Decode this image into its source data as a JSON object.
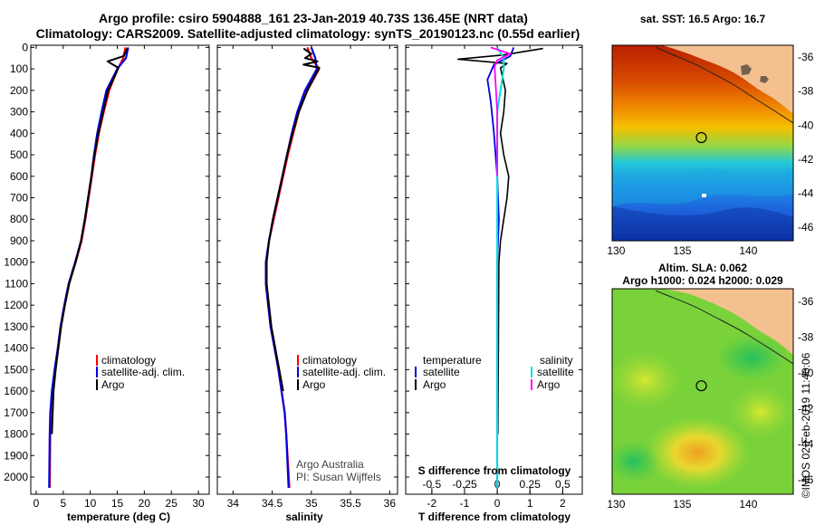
{
  "header": {
    "title_line1": "Argo profile: csiro 5904888_161 23-Jan-2019 40.73S 136.45E (NRT data)",
    "title_line2": "Climatology: CARS2009. Satellite-adjusted climatology: synTS_20190123.nc (0.55d earlier)"
  },
  "credit": {
    "line1": "Argo Australia",
    "line2": "PI: Susan Wijffels",
    "side": "©IMOS 02-Feb-2019 11:40:06"
  },
  "colors": {
    "climatology": "#ff0000",
    "satellite": "#0000dd",
    "argo": "#000000",
    "temp_satellite_diff": "#00dddd",
    "salinity_satellite_diff": "#00dddd",
    "salinity_argo_diff": "#ff00ff",
    "land": "#f4c090"
  },
  "chart_data": [
    {
      "type": "line",
      "name": "temperature-profile",
      "xlabel": "temperature (deg C)",
      "ylabel": "",
      "xlim": [
        -1,
        32
      ],
      "ylim": [
        2080,
        -10
      ],
      "xticks": [
        0,
        5,
        10,
        15,
        20,
        25,
        30
      ],
      "yticks": [
        0,
        100,
        200,
        300,
        400,
        500,
        600,
        700,
        800,
        900,
        1000,
        1100,
        1200,
        1300,
        1400,
        1500,
        1600,
        1700,
        1800,
        1900,
        2000
      ],
      "legend": [
        "climatology",
        "satellite-adj. clim.",
        "Argo"
      ],
      "series": [
        {
          "name": "climatology",
          "x": [
            16.5,
            16.1,
            15.1,
            13.5,
            12.5,
            11.6,
            10.9,
            10.3,
            9.7,
            9.1,
            8.4,
            7.3,
            6.1,
            5.3,
            4.6,
            4.1,
            3.5,
            3.0,
            2.7,
            2.6,
            2.5
          ],
          "y": [
            0,
            50,
            100,
            200,
            300,
            400,
            500,
            600,
            700,
            800,
            900,
            1000,
            1100,
            1200,
            1300,
            1400,
            1500,
            1600,
            1700,
            1800,
            2050
          ]
        },
        {
          "name": "satellite-adj. clim.",
          "x": [
            17.0,
            16.6,
            15.0,
            13.0,
            12.1,
            11.3,
            10.7,
            10.2,
            9.6,
            9.0,
            8.3,
            7.2,
            6.0,
            5.2,
            4.5,
            4.0,
            3.4,
            2.9,
            2.6,
            2.5,
            2.4
          ],
          "y": [
            0,
            50,
            100,
            200,
            300,
            400,
            500,
            600,
            700,
            800,
            900,
            1000,
            1100,
            1200,
            1300,
            1400,
            1500,
            1600,
            1700,
            1800,
            2050
          ]
        },
        {
          "name": "Argo",
          "x": [
            16.8,
            16.2,
            13.2,
            15.2,
            14.6,
            13.3,
            12.4,
            11.5,
            10.8,
            10.2,
            9.6,
            9.0,
            8.3,
            7.3,
            6.1,
            5.3,
            4.6,
            4.1,
            3.6,
            3.2,
            2.9
          ],
          "y": [
            5,
            40,
            65,
            95,
            130,
            200,
            300,
            400,
            500,
            600,
            700,
            800,
            900,
            1000,
            1100,
            1200,
            1300,
            1400,
            1500,
            1600,
            1800
          ]
        }
      ]
    },
    {
      "type": "line",
      "name": "salinity-profile",
      "xlabel": "salinity",
      "xlim": [
        33.8,
        36.1
      ],
      "ylim": [
        2080,
        -10
      ],
      "xticks": [
        34,
        34.5,
        35,
        35.5,
        36
      ],
      "legend": [
        "climatology",
        "satellite-adj. clim.",
        "Argo"
      ],
      "series": [
        {
          "name": "climatology",
          "x": [
            34.95,
            35.0,
            35.1,
            34.95,
            34.84,
            34.77,
            34.7,
            34.64,
            34.58,
            34.52,
            34.46,
            34.42,
            34.42,
            34.45,
            34.48,
            34.53,
            34.58,
            34.62,
            34.66,
            34.68,
            34.72
          ],
          "y": [
            0,
            50,
            100,
            200,
            300,
            400,
            500,
            600,
            700,
            800,
            900,
            1000,
            1100,
            1200,
            1300,
            1400,
            1500,
            1600,
            1700,
            1800,
            2050
          ]
        },
        {
          "name": "satellite-adj. clim.",
          "x": [
            35.0,
            35.05,
            35.07,
            34.92,
            34.82,
            34.75,
            34.69,
            34.63,
            34.57,
            34.51,
            34.46,
            34.42,
            34.42,
            34.45,
            34.48,
            34.53,
            34.58,
            34.62,
            34.66,
            34.68,
            34.71
          ],
          "y": [
            0,
            50,
            100,
            200,
            300,
            400,
            500,
            600,
            700,
            800,
            900,
            1000,
            1100,
            1200,
            1300,
            1400,
            1500,
            1600,
            1700,
            1800,
            2050
          ]
        },
        {
          "name": "Argo",
          "x": [
            34.9,
            35.0,
            34.92,
            35.08,
            34.9,
            35.1,
            34.95,
            34.84,
            34.76,
            34.69,
            34.63,
            34.57,
            34.51,
            34.46,
            34.43,
            34.43,
            34.46,
            34.49,
            34.54,
            34.59,
            34.64
          ],
          "y": [
            5,
            30,
            50,
            65,
            80,
            95,
            200,
            300,
            400,
            500,
            600,
            700,
            800,
            900,
            1000,
            1100,
            1200,
            1300,
            1400,
            1500,
            1600
          ]
        }
      ]
    },
    {
      "type": "line",
      "name": "difference-profile",
      "xlabel": "T difference from climatology",
      "secondary_xlabel": "S difference from climatology",
      "xlim": [
        -2.8,
        2.6
      ],
      "ylim": [
        2080,
        -10
      ],
      "xticks": [
        -2,
        -1,
        0,
        1,
        2
      ],
      "secondary_xticks": [
        -0.5,
        -0.25,
        0,
        0.25,
        0.5
      ],
      "secondary_xtick_labels": [
        "-0.5",
        "-0.25",
        "0",
        "0.25",
        "0.5"
      ],
      "legend_groups": {
        "temperature": {
          "title": "temperature",
          "items": [
            "satellite",
            "Argo"
          ]
        },
        "salinity": {
          "title": "salinity",
          "items": [
            "satellite",
            "Argo"
          ]
        }
      },
      "series": [
        {
          "name": "temperature satellite",
          "x": [
            0.5,
            0.4,
            -0.1,
            -0.3,
            -0.2,
            -0.1,
            0.0,
            0.05,
            0.0,
            0.0,
            0.0,
            0.0
          ],
          "y": [
            0,
            40,
            80,
            150,
            250,
            400,
            600,
            800,
            1000,
            1400,
            1800,
            2050
          ]
        },
        {
          "name": "temperature Argo",
          "x": [
            1.4,
            0.8,
            0.2,
            -1.2,
            0.3,
            0.1,
            0.25,
            0.2,
            0.1,
            0.2,
            0.35,
            0.3,
            0.2,
            0.1,
            0.05,
            0.02
          ],
          "y": [
            5,
            20,
            35,
            55,
            75,
            95,
            200,
            300,
            400,
            500,
            600,
            700,
            800,
            900,
            1000,
            1800
          ]
        },
        {
          "name": "salinity satellite",
          "x": [
            0.0,
            0.05,
            0.05,
            0.0,
            0.0,
            0.0,
            0.0,
            0.0
          ],
          "y": [
            0,
            50,
            100,
            300,
            600,
            1000,
            1500,
            2050
          ]
        },
        {
          "name": "salinity Argo",
          "x": [
            -0.05,
            0.1,
            0.0,
            -0.02,
            0.0,
            0.0
          ],
          "y": [
            0,
            30,
            60,
            90,
            300,
            600
          ]
        }
      ]
    },
    {
      "type": "heatmap",
      "name": "sst-map",
      "title": "sat. SST: 16.5 Argo: 16.7",
      "xticks": [
        130,
        135,
        140
      ],
      "yticks": [
        -36,
        -38,
        -40,
        -42,
        -44,
        -46
      ],
      "xlim": [
        129.7,
        143.4
      ],
      "ylim": [
        -46.8,
        -35.3
      ],
      "profile_marker": {
        "lon": 136.45,
        "lat": -40.73
      }
    },
    {
      "type": "heatmap",
      "name": "sla-map",
      "title": "Altim. SLA: 0.062",
      "subtitle": "Argo h1000: 0.024 h2000: 0.029",
      "xticks": [
        130,
        135,
        140
      ],
      "yticks": [
        -36,
        -38,
        -40,
        -42,
        -44,
        -46
      ],
      "xlim": [
        129.7,
        143.4
      ],
      "ylim": [
        -46.8,
        -35.3
      ],
      "profile_marker": {
        "lon": 136.45,
        "lat": -40.73
      }
    }
  ]
}
